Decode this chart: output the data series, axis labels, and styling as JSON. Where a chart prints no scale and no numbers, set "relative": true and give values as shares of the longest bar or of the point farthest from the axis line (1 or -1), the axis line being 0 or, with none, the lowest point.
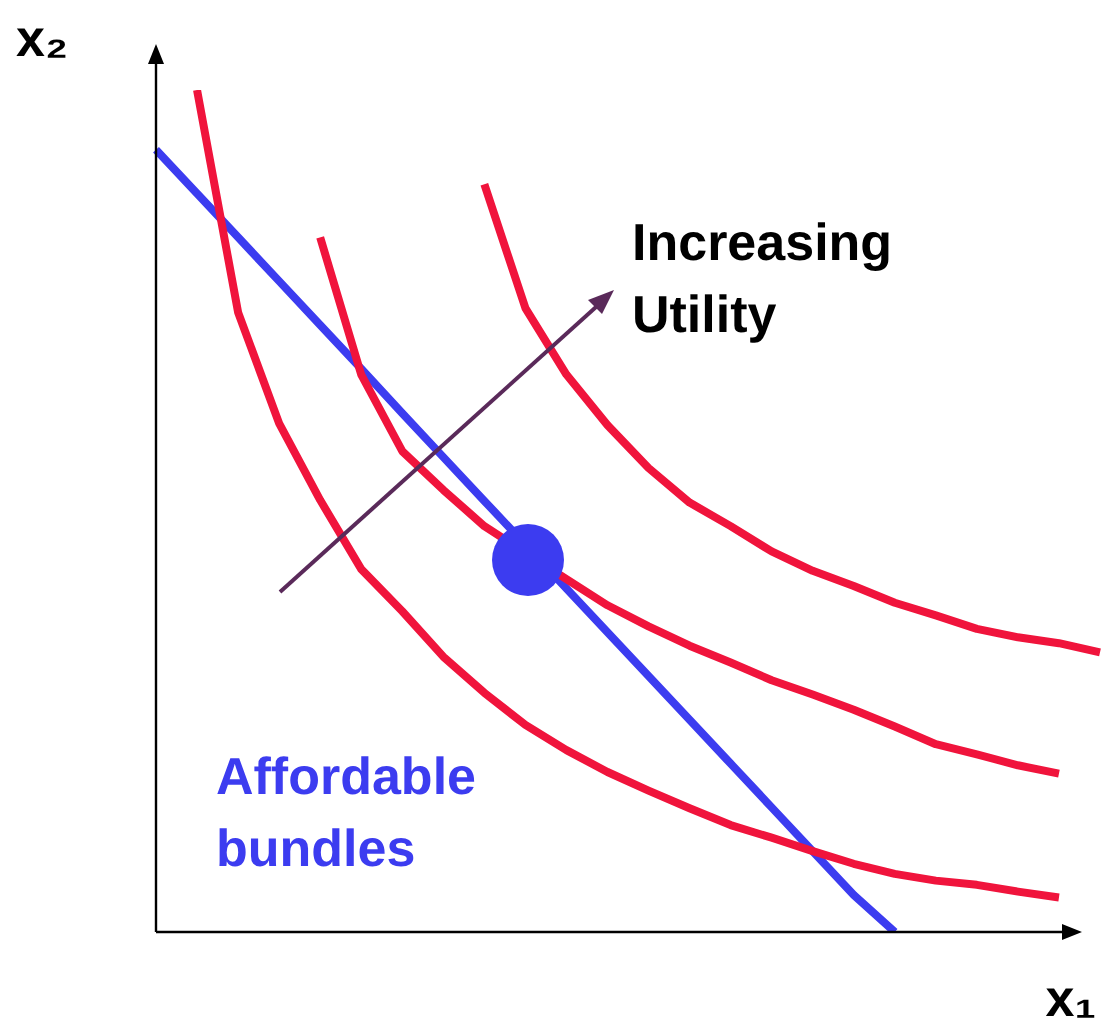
{
  "chart_data": {
    "type": "line",
    "relative": true,
    "xlabel": "x₁",
    "ylabel": "x₂",
    "legend": false,
    "marker": "none",
    "annotations": [
      "Increasing Utility"
    ],
    "categories": [
      null,
      null,
      null,
      null,
      null,
      null,
      null,
      null,
      null,
      null,
      null,
      null,
      null,
      null,
      null,
      null,
      null,
      null,
      null,
      null,
      null,
      null,
      null,
      null
    ],
    "series": [
      {
        "color": "#f0143c",
        "values": [
          null,
          1,
          0.736,
          0.604,
          0.513,
          0.431,
          0.381,
          0.327,
          0.284,
          0.246,
          0.216,
          0.19,
          0.168,
          0.147,
          0.127,
          0.112,
          0.096,
          0.081,
          0.069,
          0.061,
          0.056,
          0.048,
          0.041,
          null
        ]
      },
      {
        "color": "#f0143c",
        "values": [
          null,
          null,
          null,
          null,
          0.825,
          0.662,
          0.571,
          0.525,
          0.482,
          null,
          0.419,
          0.388,
          0.363,
          0.34,
          0.32,
          0.299,
          0.282,
          0.264,
          0.244,
          0.223,
          0.211,
          0.198,
          0.188,
          null
        ]
      },
      {
        "color": "#f0143c",
        "values": [
          null,
          null,
          null,
          null,
          null,
          null,
          null,
          null,
          0.888,
          0.741,
          0.662,
          0.602,
          0.551,
          0.51,
          0.482,
          0.452,
          0.429,
          0.411,
          0.391,
          0.376,
          0.36,
          0.35,
          0.343,
          0.332
        ]
      },
      {
        "name": "Affordable bundles",
        "color": "#3c3cf0",
        "values": [
          0.929,
          0.877,
          0.825,
          0.773,
          0.721,
          0.669,
          0.616,
          0.564,
          0.512,
          null,
          0.408,
          0.356,
          0.304,
          0.252,
          0.2,
          0.148,
          0.096,
          0.044,
          0,
          null,
          null,
          null,
          null,
          null
        ]
      }
    ]
  }
}
